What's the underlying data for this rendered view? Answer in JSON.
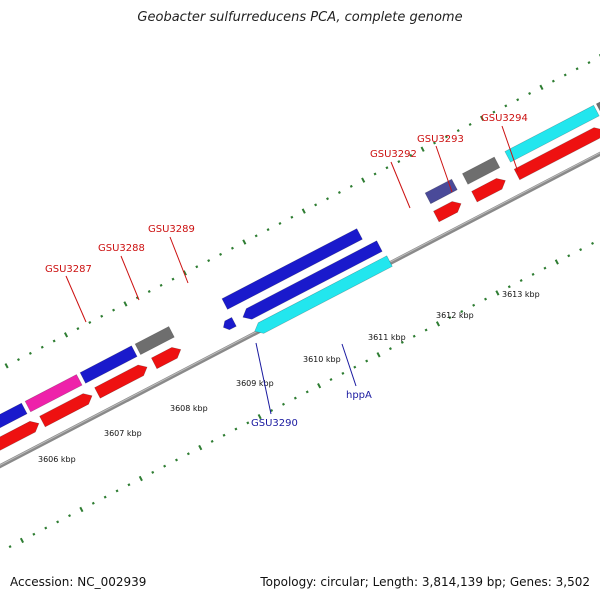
{
  "title": "Geobacter sulfurreducens PCA, complete genome",
  "footer": {
    "accession": "Accession: NC_002939",
    "summary": "Topology: circular; Length: 3,814,139 bp; Genes: 3,502"
  },
  "colors": {
    "backbone": "#8a8a8a",
    "tick": "#2e7d32",
    "red_gene": "#ee1111",
    "blue_gene": "#1a1acc",
    "cyan_gene": "#22e6ee",
    "gray_gene": "#6e6e6e",
    "magenta_gene": "#ee22aa",
    "slate_gene": "#4a4a99",
    "label_red": "#cc1111",
    "label_blue": "#1a1aa0"
  },
  "kbp_labels": [
    "3606 kbp",
    "3607 kbp",
    "3608 kbp",
    "3609 kbp",
    "3610 kbp",
    "3611 kbp",
    "3612 kbp",
    "3613 kbp"
  ],
  "gene_labels": [
    {
      "text": "GSU3287",
      "color": "red"
    },
    {
      "text": "GSU3288",
      "color": "red"
    },
    {
      "text": "GSU3289",
      "color": "red"
    },
    {
      "text": "GSU3292",
      "color": "red"
    },
    {
      "text": "GSU3293",
      "color": "red"
    },
    {
      "text": "GSU3294",
      "color": "red"
    },
    {
      "text": "GSU3290",
      "color": "blue"
    },
    {
      "text": "hppA",
      "color": "blue"
    }
  ]
}
